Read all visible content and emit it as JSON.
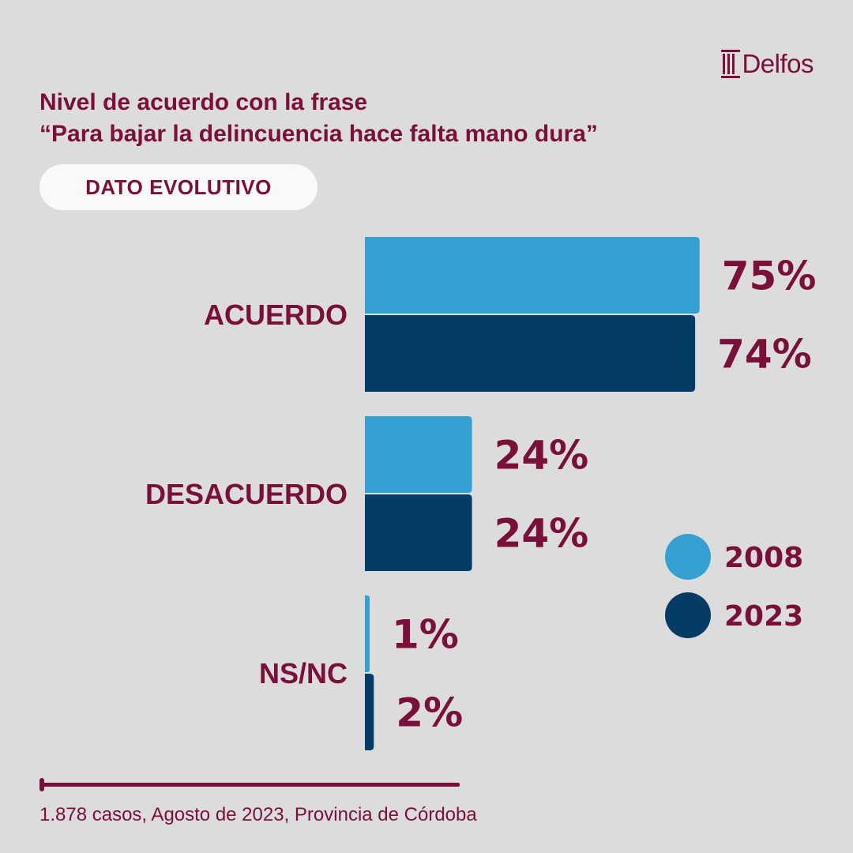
{
  "brand": {
    "name": "Delfos"
  },
  "header": {
    "title_line1": "Nivel de acuerdo con la frase",
    "title_line2": "“Para bajar la delincuencia hace falta mano dura”",
    "badge": "DATO EVOLUTIVO"
  },
  "chart_data": {
    "type": "bar",
    "orientation": "horizontal",
    "categories": [
      "ACUERDO",
      "DESACUERDO",
      "NS/NC"
    ],
    "series": [
      {
        "name": "2008",
        "values": [
          75,
          24,
          1
        ],
        "labels": [
          "75%",
          "24%",
          "1%"
        ],
        "color": "#34a0d1"
      },
      {
        "name": "2023",
        "values": [
          74,
          24,
          2
        ],
        "labels": [
          "74%",
          "24%",
          "2%"
        ],
        "color": "#053c66"
      }
    ],
    "legend": [
      "2008",
      "2023"
    ],
    "legend_position": "right",
    "xlim": [
      0,
      100
    ],
    "unit": "%"
  },
  "footer": {
    "note": "1.878 casos, Agosto de 2023, Provincia de Córdoba"
  },
  "colors": {
    "accent": "#7a0f3a",
    "background": "#dcdcdc",
    "light_blue": "#34a0d1",
    "dark_blue": "#053c66"
  }
}
